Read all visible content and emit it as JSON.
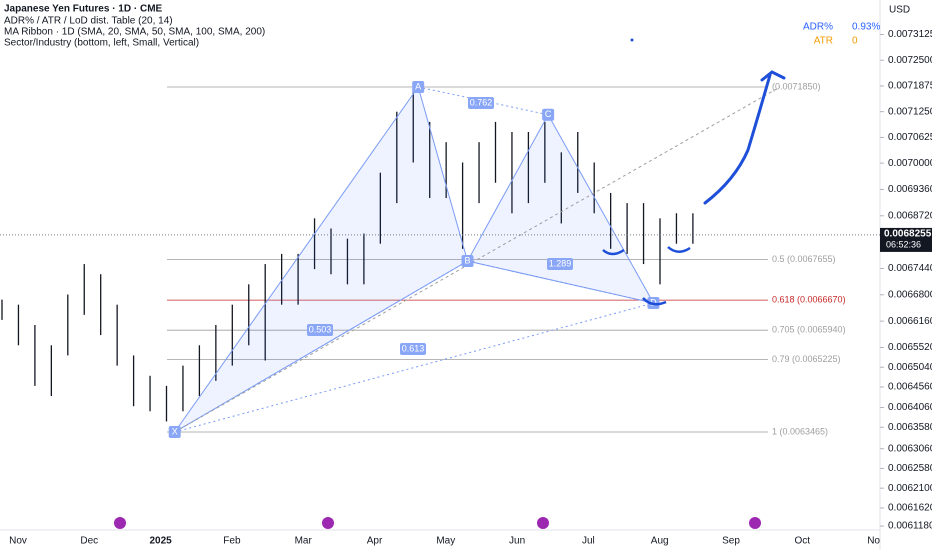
{
  "header": {
    "title": "Japanese Yen Futures · 1D · CME",
    "indicators": [
      "ADR% / ATR / LoD dist. Table (20, 14)",
      "MA Ribbon · 1D (SMA, 20, SMA, 50, SMA, 100, SMA, 200)",
      "Sector/Industry (bottom, left, Small, Vertical)"
    ]
  },
  "table": {
    "rows": [
      {
        "label": "ADR%",
        "value": "0.93%",
        "color": "#2962ff"
      },
      {
        "label": "ATR",
        "value": "0",
        "color": "#f59b00"
      }
    ]
  },
  "chart_data": {
    "type": "ohlc",
    "currency": "USD",
    "color": "#131722",
    "x_labels": [
      "Nov",
      "Dec",
      "2025",
      "Feb",
      "Mar",
      "Apr",
      "May",
      "Jun",
      "Jul",
      "Aug",
      "Sep",
      "Oct",
      "No"
    ],
    "high": [
      0.0066683,
      0.006656,
      0.0066066,
      0.0065573,
      0.0066807,
      0.0067547,
      0.00673,
      0.006656,
      0.0065326,
      0.0064832,
      0.0064586,
      0.0065079,
      0.0065573,
      0.0066066,
      0.006656,
      0.0067054,
      0.0067547,
      0.0067794,
      0.0067794,
      0.0068658,
      0.0068411,
      0.0068164,
      0.0068288,
      0.0069768,
      0.0071249,
      0.0071866,
      0.0071002,
      0.0070509,
      0.0070015,
      0.0070509,
      0.0071002,
      0.0070756,
      0.0070756,
      0.0071002,
      0.0070262,
      0.0070756,
      0.0070015,
      0.0069275,
      0.0069028,
      0.0069028,
      0.0068658,
      0.0068781,
      0.0068781
    ],
    "low": [
      0.006619,
      0.0065573,
      0.0064586,
      0.0064339,
      0.0065326,
      0.0066313,
      0.006582,
      0.0065079,
      0.0064092,
      0.0063969,
      0.0063722,
      0.0063969,
      0.0064339,
      0.0064709,
      0.0065079,
      0.0065573,
      0.0065203,
      0.006656,
      0.006656,
      0.0067424,
      0.00673,
      0.0067054,
      0.0067054,
      0.0068041,
      0.0069028,
      0.0070015,
      0.0069151,
      0.0069151,
      0.0067917,
      0.0069028,
      0.0069522,
      0.0068781,
      0.0069028,
      0.0069522,
      0.0068534,
      0.0069275,
      0.0068781,
      0.0067917,
      0.0067794,
      0.0067547,
      0.0067054,
      0.0068041,
      0.0068041
    ],
    "ylim": [
      0.0061084,
      0.0073964
    ],
    "yticks": [
      {
        "value": 0.0073125,
        "label": "0.0073125"
      },
      {
        "value": 0.00725,
        "label": "0.0072500"
      },
      {
        "value": 0.0071875,
        "label": "0.0071875"
      },
      {
        "value": 0.007125,
        "label": "0.0071250"
      },
      {
        "value": 0.0070625,
        "label": "0.0070625"
      },
      {
        "value": 0.007,
        "label": "0.0070000"
      },
      {
        "value": 0.006936,
        "label": "0.0069360"
      },
      {
        "value": 0.006872,
        "label": "0.0068720"
      },
      {
        "value": 0.006744,
        "label": "0.0067440"
      },
      {
        "value": 0.00668,
        "label": "0.0066800"
      },
      {
        "value": 0.006616,
        "label": "0.0066160"
      },
      {
        "value": 0.006552,
        "label": "0.0065520"
      },
      {
        "value": 0.006504,
        "label": "0.0065040"
      },
      {
        "value": 0.006456,
        "label": "0.0064560"
      },
      {
        "value": 0.006406,
        "label": "0.0064060"
      },
      {
        "value": 0.006358,
        "label": "0.0063580"
      },
      {
        "value": 0.006306,
        "label": "0.0063060"
      },
      {
        "value": 0.006258,
        "label": "0.0062580"
      },
      {
        "value": 0.00621,
        "label": "0.0062100"
      },
      {
        "value": 0.006162,
        "label": "0.0061620"
      },
      {
        "value": 0.006118,
        "label": "0.0061180"
      }
    ],
    "last_price": {
      "value": 0.0068255,
      "label": "0.0068255",
      "countdown": "06:52:36"
    },
    "fib_levels": [
      {
        "value": 0.007185,
        "label": "(0.0071850)",
        "color": "#9e9e9e"
      },
      {
        "value": 0.0067655,
        "label": "0.5 (0.0067655)",
        "color": "#9e9e9e"
      },
      {
        "value": 0.006667,
        "label": "0.618 (0.0066670)",
        "color": "#c62828"
      },
      {
        "value": 0.006594,
        "label": "0.705 (0.0065940)",
        "color": "#9e9e9e"
      },
      {
        "value": 0.0065225,
        "label": "0.79 (0.0065225)",
        "color": "#9e9e9e"
      },
      {
        "value": 0.0063465,
        "label": "1 (0.0063465)",
        "color": "#9e9e9e"
      }
    ],
    "pattern": {
      "color": "#7b9bf5",
      "points": [
        {
          "label": "X",
          "bar": 10.5,
          "price": 0.0063465
        },
        {
          "label": "A",
          "bar": 25.3,
          "price": 0.007185
        },
        {
          "label": "B",
          "bar": 28.3,
          "price": 0.006762
        },
        {
          "label": "C",
          "bar": 33.2,
          "price": 0.0071175
        },
        {
          "label": "D",
          "bar": 39.6,
          "price": 0.00666
        }
      ],
      "ratios": [
        "0.762",
        "1.289",
        "0.503",
        "0.613"
      ]
    }
  }
}
